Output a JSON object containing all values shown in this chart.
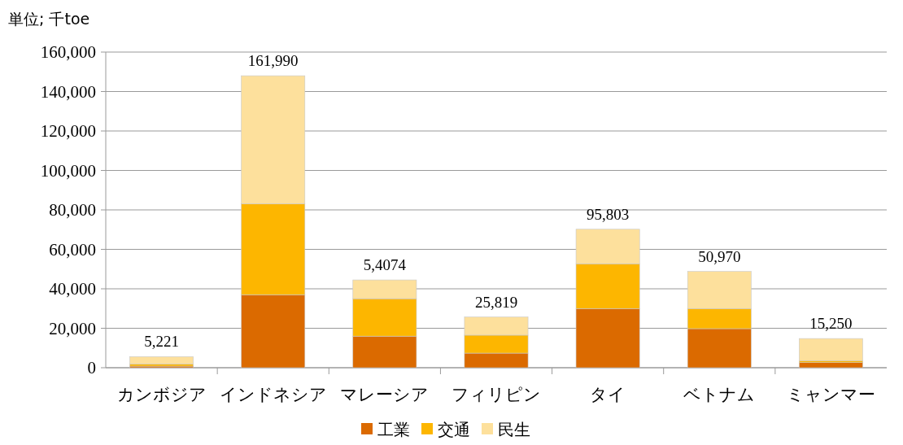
{
  "chart_data": {
    "type": "bar",
    "stacked": true,
    "ylabel": "単位; 千toe",
    "categories": [
      "カンボジア",
      "インドネシア",
      "マレーシア",
      "フィリピン",
      "タイ",
      "ベトナム",
      "ミャンマー"
    ],
    "series": [
      {
        "name": "工業",
        "color": "#db6a00",
        "values": [
          800,
          37000,
          16000,
          7400,
          30000,
          19800,
          2600
        ]
      },
      {
        "name": "交通",
        "color": "#fdb600",
        "values": [
          1000,
          46000,
          19000,
          9100,
          22700,
          10200,
          1000
        ]
      },
      {
        "name": "民生",
        "color": "#fde09c",
        "values": [
          3800,
          65000,
          9500,
          9200,
          17500,
          18800,
          11200
        ]
      }
    ],
    "annotations": [
      {
        "text": "5,221",
        "x": "カンボジア",
        "y": 5600
      },
      {
        "text": "161,990",
        "x": "インドネシア",
        "y": 148000
      },
      {
        "text": "5,4074",
        "x": "マレーシア",
        "y": 44500
      },
      {
        "text": "25,819",
        "x": "フィリピン",
        "y": 25700
      },
      {
        "text": "95,803",
        "x": "タイ",
        "y": 70200
      },
      {
        "text": "50,970",
        "x": "ベトナム",
        "y": 48800
      },
      {
        "text": "15,250",
        "x": "ミャンマー",
        "y": 14800
      }
    ],
    "ylim": [
      0,
      160000
    ],
    "yticks": [
      {
        "value": 0,
        "label": "0"
      },
      {
        "value": 20000,
        "label": "20,000"
      },
      {
        "value": 40000,
        "label": "40,000"
      },
      {
        "value": 60000,
        "label": "60,000"
      },
      {
        "value": 80000,
        "label": "80,000"
      },
      {
        "value": 100000,
        "label": "100,000"
      },
      {
        "value": 120000,
        "label": "120,000"
      },
      {
        "value": 140000,
        "label": "140,000"
      },
      {
        "value": 160000,
        "label": "160,000"
      }
    ],
    "grid": "y",
    "legend": "bottom"
  }
}
